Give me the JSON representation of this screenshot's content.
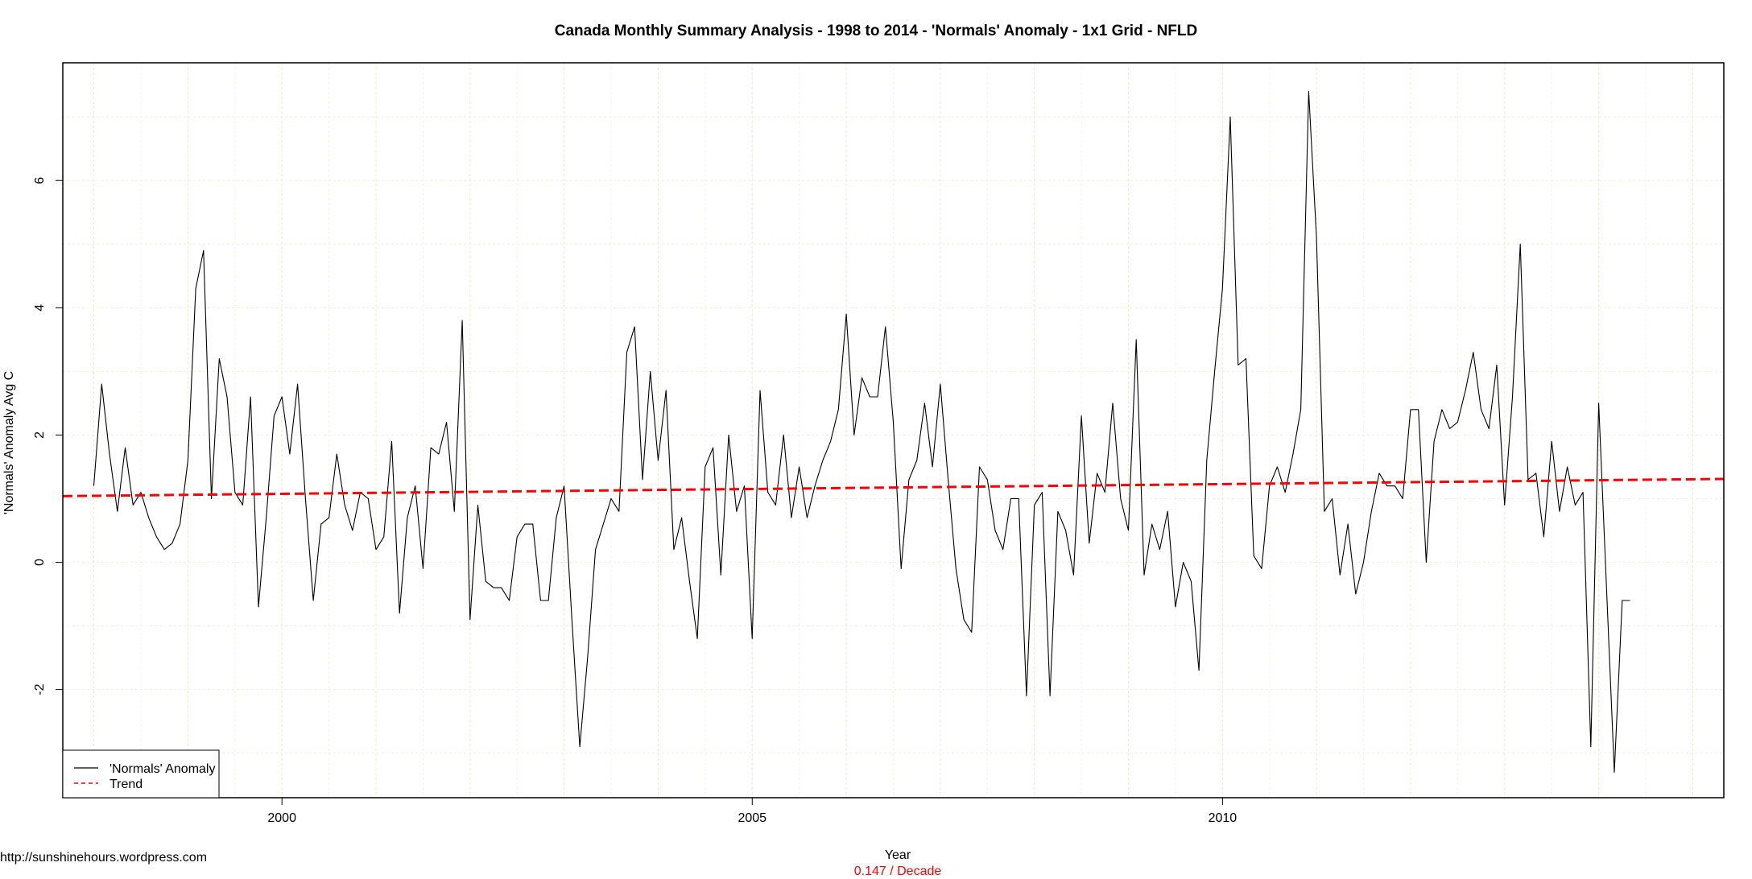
{
  "chart_data": {
    "type": "line",
    "title": "Canada Monthly Summary Analysis - 1998 to 2014 - 'Normals' Anomaly - 1x1 Grid - NFLD",
    "xlabel": "Year",
    "ylabel": "'Normals' Anomaly Avg C",
    "subtitle_note": "0.147  / Decade",
    "source_note": "http://sunshinehours.wordpress.com",
    "xlim": [
      1997.67,
      2015.33
    ],
    "ylim": [
      -3.7,
      7.85
    ],
    "x_ticks": [
      2000,
      2005,
      2010
    ],
    "y_ticks": [
      -2,
      0,
      2,
      4,
      6
    ],
    "x_tick_labels": [
      "2000",
      "2005",
      "2010"
    ],
    "y_tick_labels": [
      "-2",
      "0",
      "2",
      "4",
      "6"
    ],
    "grid": true,
    "legend_position": "bottom-left",
    "series": [
      {
        "name": "'Normals' Anomaly",
        "color": "#000000",
        "style": "solid",
        "x_start": 1998.0,
        "x_step": 0.08333,
        "values": [
          1.2,
          2.8,
          1.7,
          0.8,
          1.8,
          0.9,
          1.1,
          0.7,
          0.4,
          0.2,
          0.3,
          0.6,
          1.6,
          4.3,
          4.9,
          1.0,
          3.2,
          2.6,
          1.1,
          0.9,
          2.6,
          -0.7,
          0.7,
          2.3,
          2.6,
          1.7,
          2.8,
          1.0,
          -0.6,
          0.6,
          0.7,
          1.7,
          0.9,
          0.5,
          1.1,
          1.0,
          0.2,
          0.4,
          1.9,
          -0.8,
          0.7,
          1.2,
          -0.1,
          1.8,
          1.7,
          2.2,
          0.8,
          3.8,
          -0.9,
          0.9,
          -0.3,
          -0.4,
          -0.4,
          -0.6,
          0.4,
          0.6,
          0.6,
          -0.6,
          -0.6,
          0.7,
          1.2,
          -0.9,
          -2.9,
          -1.5,
          0.2,
          0.6,
          1.0,
          0.8,
          3.3,
          3.7,
          1.3,
          3.0,
          1.6,
          2.7,
          0.2,
          0.7,
          -0.3,
          -1.2,
          1.5,
          1.8,
          -0.2,
          2.0,
          0.8,
          1.2,
          -1.2,
          2.7,
          1.1,
          0.9,
          2.0,
          0.7,
          1.5,
          0.7,
          1.2,
          1.6,
          1.9,
          2.4,
          3.9,
          2.0,
          2.9,
          2.6,
          2.6,
          3.7,
          2.2,
          -0.1,
          1.3,
          1.6,
          2.5,
          1.5,
          2.8,
          1.3,
          -0.1,
          -0.9,
          -1.1,
          1.5,
          1.3,
          0.5,
          0.2,
          1.0,
          1.0,
          -2.1,
          0.9,
          1.1,
          -2.1,
          0.8,
          0.5,
          -0.2,
          2.3,
          0.3,
          1.4,
          1.1,
          2.5,
          1.0,
          0.5,
          3.5,
          -0.2,
          0.6,
          0.2,
          0.8,
          -0.7,
          0.0,
          -0.3,
          -1.7,
          1.6,
          3.0,
          4.3,
          7.0,
          3.1,
          3.2,
          0.1,
          -0.1,
          1.2,
          1.5,
          1.1,
          1.7,
          2.4,
          7.4,
          5.1,
          0.8,
          1.0,
          -0.2,
          0.6,
          -0.5,
          0.0,
          0.8,
          1.4,
          1.2,
          1.2,
          1.0,
          2.4,
          2.4,
          0.0,
          1.9,
          2.4,
          2.1,
          2.2,
          2.7,
          3.3,
          2.4,
          2.1,
          3.1,
          0.9,
          2.6,
          5.0,
          1.3,
          1.4,
          0.4,
          1.9,
          0.8,
          1.5,
          0.9,
          1.1,
          -2.9,
          2.5,
          -0.4,
          -3.3,
          -0.6,
          -0.6
        ]
      },
      {
        "name": "Trend",
        "color": "#ff0000",
        "style": "dashed",
        "x": [
          1997.67,
          2015.33
        ],
        "values": [
          1.04,
          1.31
        ]
      }
    ]
  }
}
